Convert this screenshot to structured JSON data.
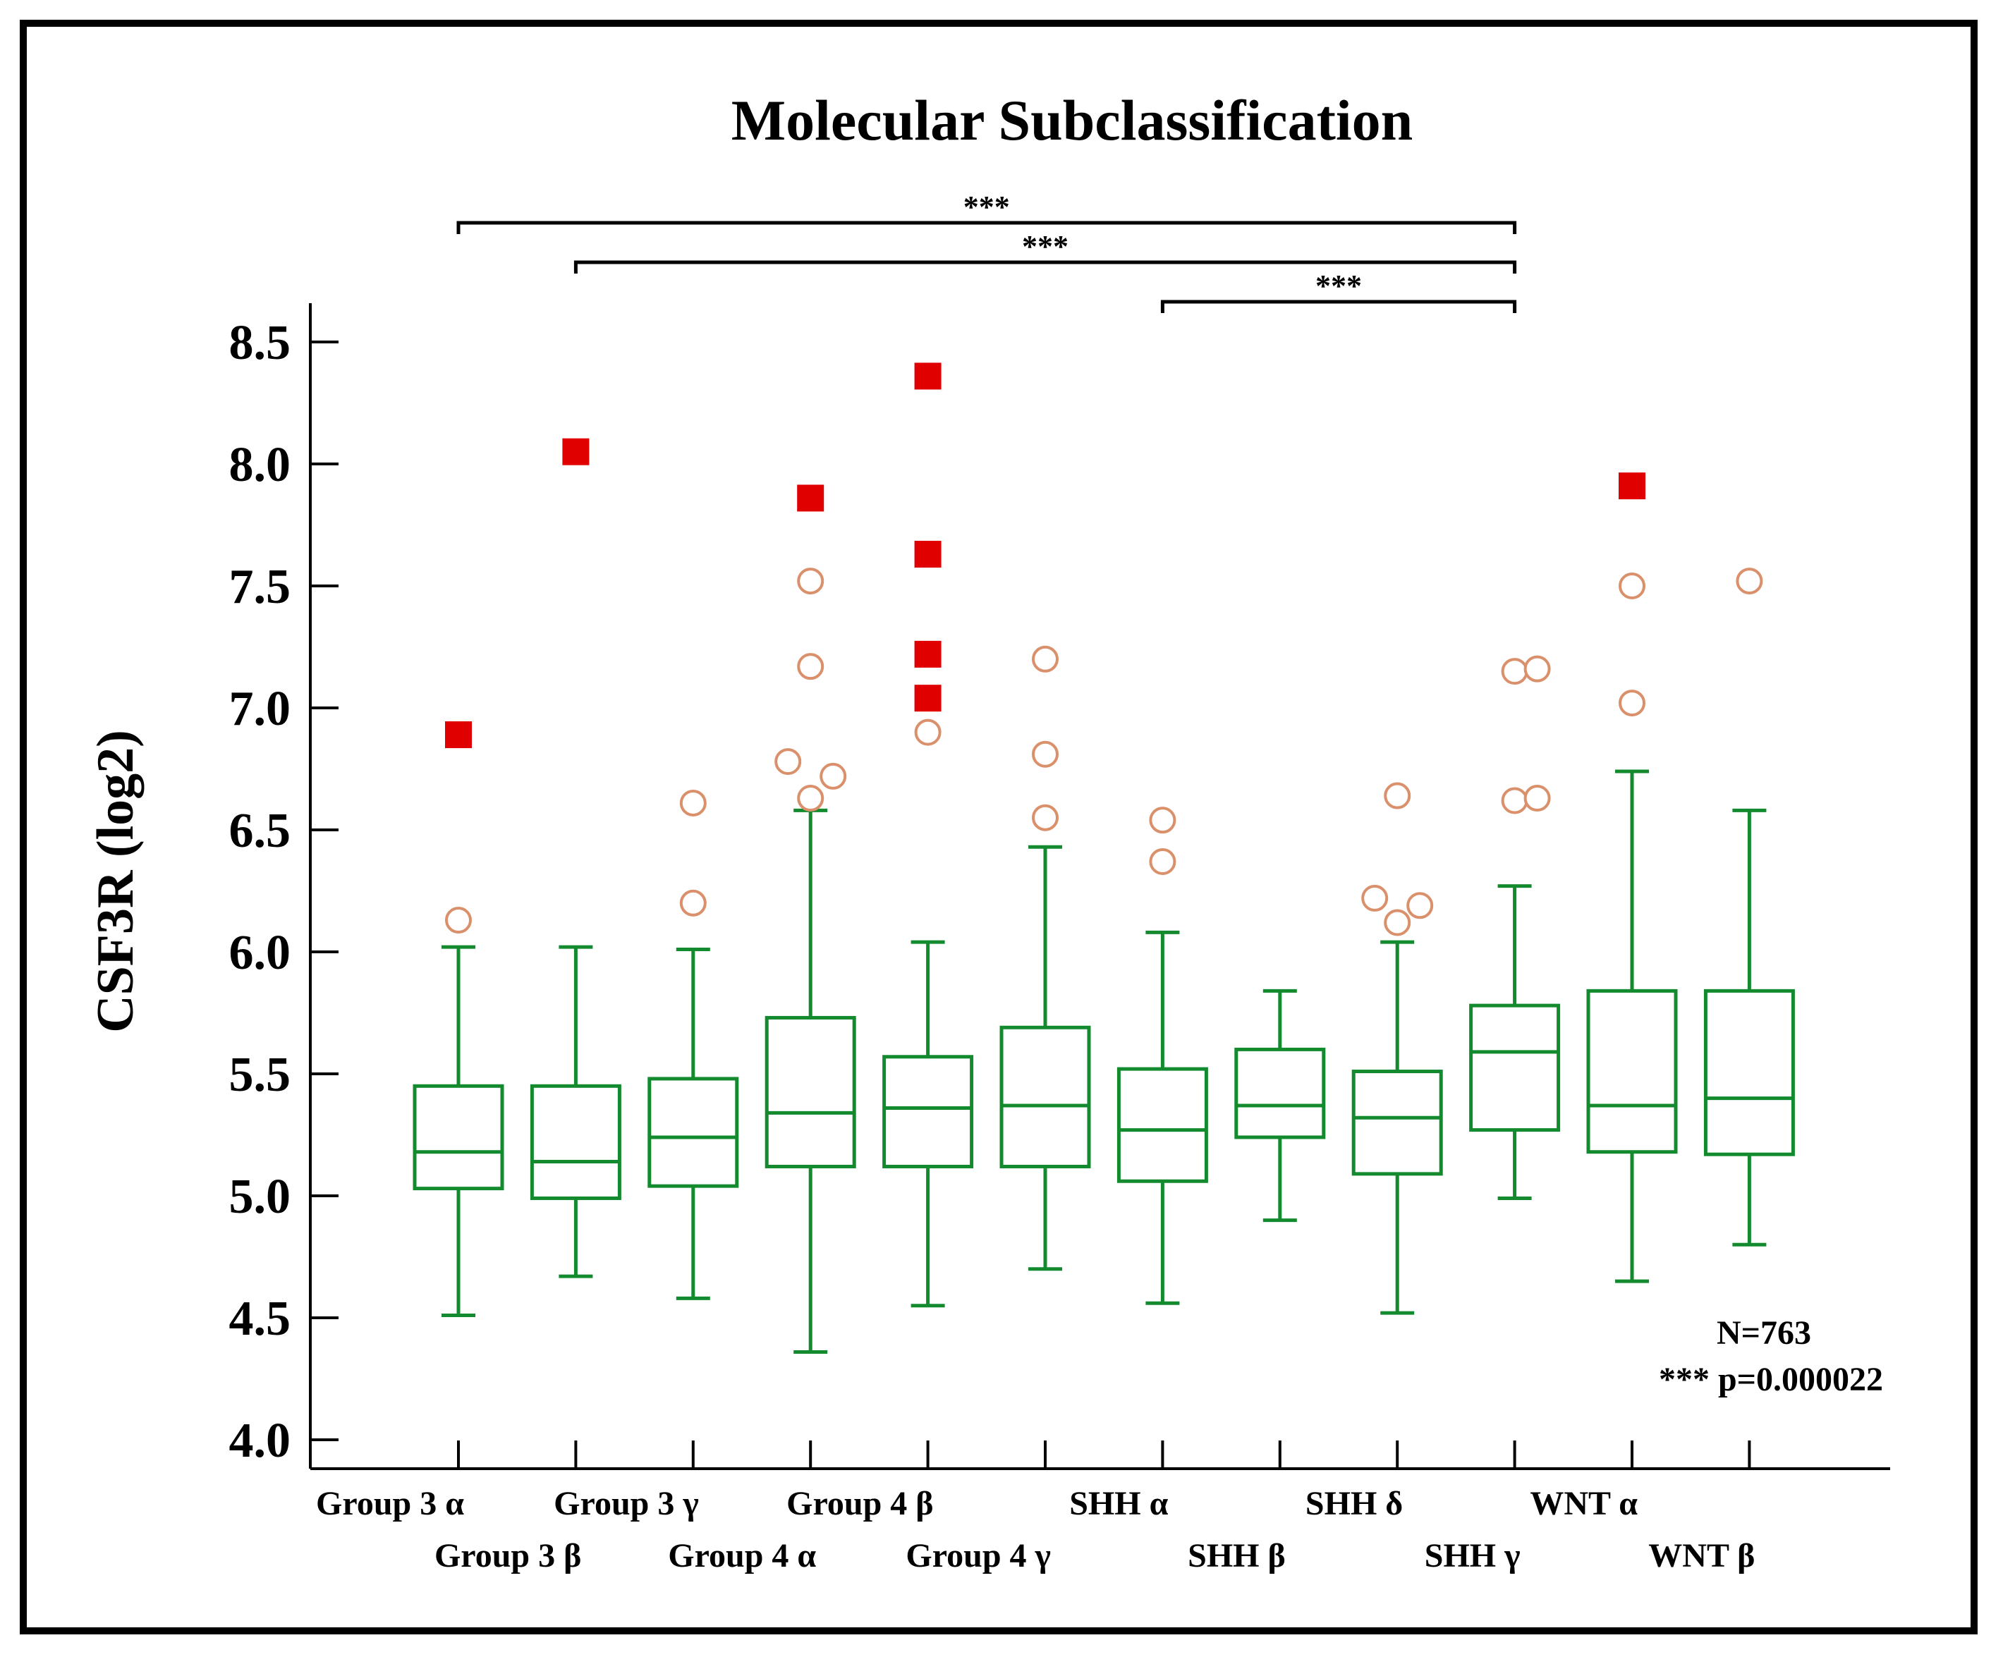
{
  "chart_data": {
    "type": "boxplot",
    "title": "Molecular Subclassification",
    "ylabel": "CSF3R (log2)",
    "xlabel": "",
    "ylim": [
      4.0,
      8.6
    ],
    "yticks": [
      "4.0",
      "4.5",
      "5.0",
      "5.5",
      "6.0",
      "6.5",
      "7.0",
      "7.5",
      "8.0",
      "8.5"
    ],
    "ytick_values": [
      4.0,
      4.5,
      5.0,
      5.5,
      6.0,
      6.5,
      7.0,
      7.5,
      8.0,
      8.5
    ],
    "categories": [
      "Group 3 α",
      "Group 3 β",
      "Group 3 γ",
      "Group 4 α",
      "Group 4 β",
      "Group 4 γ",
      "SHH α",
      "SHH β",
      "SHH δ",
      "SHH γ",
      "WNT α",
      "WNT β"
    ],
    "boxes": [
      {
        "q1": 5.03,
        "median": 5.18,
        "q3": 5.45,
        "whisker_low": 4.51,
        "whisker_high": 6.02,
        "outliers_open": [
          6.13
        ],
        "outliers_extreme": [
          6.89
        ]
      },
      {
        "q1": 4.99,
        "median": 5.14,
        "q3": 5.45,
        "whisker_low": 4.67,
        "whisker_high": 6.02,
        "outliers_open": [],
        "outliers_extreme": [
          8.05
        ]
      },
      {
        "q1": 5.04,
        "median": 5.24,
        "q3": 5.48,
        "whisker_low": 4.58,
        "whisker_high": 6.01,
        "outliers_open": [
          6.2,
          6.61
        ],
        "outliers_extreme": []
      },
      {
        "q1": 5.12,
        "median": 5.34,
        "q3": 5.73,
        "whisker_low": 4.36,
        "whisker_high": 6.58,
        "outliers_open": [
          6.63,
          6.72,
          6.78,
          7.17,
          7.52
        ],
        "outliers_extreme": [
          7.86
        ]
      },
      {
        "q1": 5.12,
        "median": 5.36,
        "q3": 5.57,
        "whisker_low": 4.55,
        "whisker_high": 6.04,
        "outliers_open": [
          6.9
        ],
        "outliers_extreme": [
          7.04,
          7.22,
          7.63,
          8.36
        ]
      },
      {
        "q1": 5.12,
        "median": 5.37,
        "q3": 5.69,
        "whisker_low": 4.7,
        "whisker_high": 6.43,
        "outliers_open": [
          6.55,
          6.81,
          7.2
        ],
        "outliers_extreme": []
      },
      {
        "q1": 5.06,
        "median": 5.27,
        "q3": 5.52,
        "whisker_low": 4.56,
        "whisker_high": 6.08,
        "outliers_open": [
          6.37,
          6.54
        ],
        "outliers_extreme": []
      },
      {
        "q1": 5.24,
        "median": 5.37,
        "q3": 5.6,
        "whisker_low": 4.9,
        "whisker_high": 5.84,
        "outliers_open": [],
        "outliers_extreme": []
      },
      {
        "q1": 5.09,
        "median": 5.32,
        "q3": 5.51,
        "whisker_low": 4.52,
        "whisker_high": 6.04,
        "outliers_open": [
          6.12,
          6.19,
          6.22,
          6.64
        ],
        "outliers_extreme": []
      },
      {
        "q1": 5.27,
        "median": 5.59,
        "q3": 5.78,
        "whisker_low": 4.99,
        "whisker_high": 6.27,
        "outliers_open": [
          6.62,
          6.63,
          7.15,
          7.16
        ],
        "outliers_extreme": []
      },
      {
        "q1": 5.18,
        "median": 5.37,
        "q3": 5.84,
        "whisker_low": 4.65,
        "whisker_high": 6.74,
        "outliers_open": [
          7.02,
          7.5
        ],
        "outliers_extreme": [
          7.91
        ]
      },
      {
        "q1": 5.17,
        "median": 5.4,
        "q3": 5.84,
        "whisker_low": 4.8,
        "whisker_high": 6.58,
        "outliers_open": [
          7.52
        ],
        "outliers_extreme": []
      }
    ],
    "significance": [
      {
        "from": "Group 3 α",
        "to": "SHH γ",
        "label": "***"
      },
      {
        "from": "Group 3 β",
        "to": "SHH γ",
        "label": "***"
      },
      {
        "from": "SHH α",
        "to": "SHH γ",
        "label": "***"
      }
    ],
    "annotations": [
      "N=763",
      "*** p=0.000022"
    ],
    "colors": {
      "box": "#138a2e",
      "open_outlier": "#d9906b",
      "extreme_outlier": "#e00000",
      "axis": "#000000"
    }
  }
}
